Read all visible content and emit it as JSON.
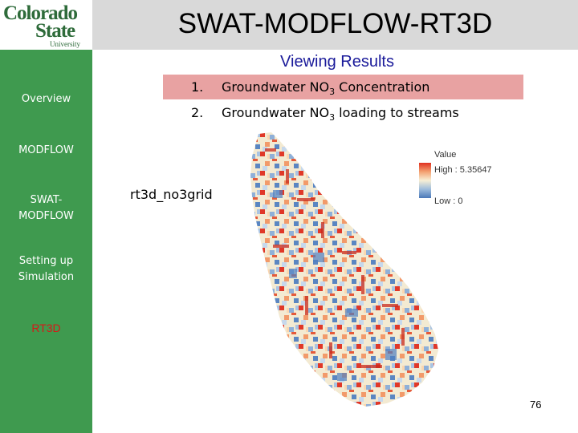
{
  "logo": {
    "line1": "Colorado",
    "line2": "State",
    "line3": "University"
  },
  "title": "SWAT-MODFLOW-RT3D",
  "subtitle": "Viewing Results",
  "sidebar": {
    "items": [
      {
        "label": "Overview",
        "active": false
      },
      {
        "label": "MODFLOW",
        "active": false
      },
      {
        "label": "SWAT-MODFLOW",
        "active": false
      },
      {
        "label": "Setting up Simulation",
        "active": false
      },
      {
        "label": "RT3D",
        "active": true
      }
    ]
  },
  "list": [
    {
      "num": "1.",
      "prefix": "Groundwater NO",
      "sub": "3",
      "suffix": " Concentration"
    },
    {
      "num": "2.",
      "prefix": "Groundwater NO",
      "sub": "3",
      "suffix": " loading to streams"
    }
  ],
  "layer_label": "rt3d_no3grid",
  "legend": {
    "title": "Value",
    "high": "High : 5.35647",
    "low": "Low : 0"
  },
  "colors": {
    "sidebar": "#3f9a4f",
    "highlight": "#e8a2a2",
    "active_nav": "#d61818",
    "subtitle": "#1a1a9a"
  },
  "page_number": "76"
}
